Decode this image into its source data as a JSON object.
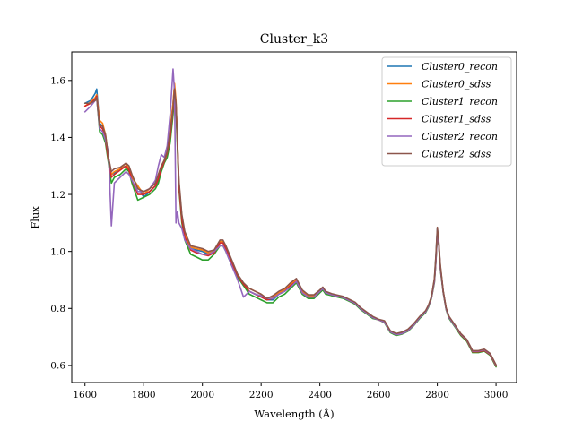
{
  "chart_data": {
    "type": "line",
    "title": "Cluster_k3",
    "xlabel": "Wavelength (Å)",
    "ylabel": "Flux",
    "xlim": [
      1555,
      3070
    ],
    "ylim": [
      0.54,
      1.7
    ],
    "x_ticks": [
      1600,
      1800,
      2000,
      2200,
      2400,
      2600,
      2800,
      3000
    ],
    "y_ticks": [
      0.6,
      0.8,
      1.0,
      1.2,
      1.4,
      1.6
    ],
    "grid": false,
    "legend_position": "top-right",
    "x": [
      1600,
      1620,
      1635,
      1640,
      1650,
      1660,
      1670,
      1680,
      1690,
      1700,
      1720,
      1740,
      1750,
      1760,
      1780,
      1800,
      1820,
      1840,
      1850,
      1860,
      1870,
      1880,
      1890,
      1900,
      1905,
      1910,
      1915,
      1920,
      1930,
      1940,
      1960,
      1980,
      2000,
      2020,
      2040,
      2060,
      2070,
      2080,
      2100,
      2120,
      2140,
      2160,
      2180,
      2200,
      2220,
      2240,
      2260,
      2280,
      2300,
      2320,
      2330,
      2340,
      2360,
      2380,
      2400,
      2410,
      2420,
      2440,
      2460,
      2480,
      2500,
      2520,
      2540,
      2560,
      2580,
      2600,
      2620,
      2640,
      2660,
      2680,
      2700,
      2720,
      2740,
      2760,
      2770,
      2780,
      2790,
      2795,
      2800,
      2805,
      2810,
      2820,
      2830,
      2840,
      2860,
      2880,
      2900,
      2920,
      2940,
      2960,
      2980,
      3000
    ],
    "series": [
      {
        "name": "Cluster0_recon",
        "color": "#1f77b4",
        "values": [
          1.52,
          1.53,
          1.555,
          1.57,
          1.45,
          1.44,
          1.4,
          1.33,
          1.27,
          1.275,
          1.29,
          1.3,
          1.29,
          1.26,
          1.23,
          1.19,
          1.21,
          1.23,
          1.25,
          1.29,
          1.32,
          1.35,
          1.42,
          1.52,
          1.58,
          1.52,
          1.38,
          1.24,
          1.12,
          1.06,
          1.01,
          1.005,
          1.0,
          0.99,
          1.0,
          1.03,
          1.03,
          1.01,
          0.96,
          0.91,
          0.88,
          0.86,
          0.85,
          0.84,
          0.83,
          0.83,
          0.85,
          0.86,
          0.88,
          0.9,
          0.88,
          0.86,
          0.84,
          0.84,
          0.86,
          0.87,
          0.855,
          0.845,
          0.845,
          0.84,
          0.83,
          0.82,
          0.8,
          0.785,
          0.77,
          0.76,
          0.755,
          0.72,
          0.71,
          0.715,
          0.725,
          0.745,
          0.77,
          0.79,
          0.81,
          0.84,
          0.9,
          0.98,
          1.08,
          1.03,
          0.95,
          0.86,
          0.8,
          0.77,
          0.74,
          0.71,
          0.69,
          0.65,
          0.65,
          0.65,
          0.64,
          0.6
        ]
      },
      {
        "name": "Cluster0_sdss",
        "color": "#ff7f0e",
        "values": [
          1.51,
          1.525,
          1.54,
          1.55,
          1.46,
          1.45,
          1.41,
          1.33,
          1.27,
          1.28,
          1.29,
          1.31,
          1.29,
          1.26,
          1.23,
          1.2,
          1.22,
          1.24,
          1.27,
          1.3,
          1.32,
          1.36,
          1.43,
          1.52,
          1.59,
          1.53,
          1.39,
          1.24,
          1.12,
          1.06,
          1.015,
          1.01,
          1.005,
          0.995,
          1.0,
          1.035,
          1.035,
          1.015,
          0.965,
          0.915,
          0.885,
          0.87,
          0.86,
          0.85,
          0.835,
          0.84,
          0.855,
          0.865,
          0.885,
          0.9,
          0.88,
          0.86,
          0.845,
          0.845,
          0.86,
          0.87,
          0.855,
          0.85,
          0.845,
          0.84,
          0.83,
          0.82,
          0.8,
          0.785,
          0.77,
          0.76,
          0.755,
          0.72,
          0.71,
          0.715,
          0.725,
          0.745,
          0.77,
          0.79,
          0.81,
          0.84,
          0.9,
          0.97,
          1.06,
          1.02,
          0.95,
          0.86,
          0.8,
          0.77,
          0.74,
          0.71,
          0.69,
          0.65,
          0.65,
          0.655,
          0.64,
          0.6
        ]
      },
      {
        "name": "Cluster1_recon",
        "color": "#2ca02c",
        "values": [
          1.52,
          1.52,
          1.53,
          1.54,
          1.42,
          1.41,
          1.38,
          1.31,
          1.24,
          1.26,
          1.27,
          1.29,
          1.28,
          1.24,
          1.18,
          1.19,
          1.2,
          1.22,
          1.24,
          1.28,
          1.31,
          1.33,
          1.38,
          1.48,
          1.55,
          1.49,
          1.36,
          1.22,
          1.1,
          1.04,
          0.99,
          0.98,
          0.97,
          0.97,
          0.99,
          1.02,
          1.02,
          1.0,
          0.95,
          0.91,
          0.88,
          0.85,
          0.84,
          0.83,
          0.82,
          0.82,
          0.84,
          0.85,
          0.87,
          0.89,
          0.87,
          0.85,
          0.835,
          0.835,
          0.855,
          0.865,
          0.85,
          0.845,
          0.84,
          0.835,
          0.825,
          0.815,
          0.795,
          0.78,
          0.765,
          0.76,
          0.75,
          0.715,
          0.705,
          0.71,
          0.72,
          0.74,
          0.765,
          0.785,
          0.805,
          0.835,
          0.89,
          0.96,
          1.06,
          1.02,
          0.94,
          0.855,
          0.795,
          0.765,
          0.735,
          0.705,
          0.685,
          0.645,
          0.645,
          0.65,
          0.635,
          0.595
        ]
      },
      {
        "name": "Cluster1_sdss",
        "color": "#d62728",
        "values": [
          1.51,
          1.52,
          1.535,
          1.545,
          1.44,
          1.43,
          1.39,
          1.32,
          1.26,
          1.27,
          1.285,
          1.3,
          1.285,
          1.25,
          1.2,
          1.2,
          1.21,
          1.23,
          1.255,
          1.29,
          1.315,
          1.345,
          1.4,
          1.5,
          1.57,
          1.51,
          1.38,
          1.23,
          1.11,
          1.05,
          1.005,
          0.995,
          0.99,
          0.985,
          0.995,
          1.03,
          1.03,
          1.01,
          0.96,
          0.915,
          0.885,
          0.86,
          0.85,
          0.84,
          0.83,
          0.835,
          0.85,
          0.86,
          0.88,
          0.895,
          0.875,
          0.855,
          0.84,
          0.84,
          0.86,
          0.87,
          0.855,
          0.848,
          0.843,
          0.838,
          0.828,
          0.818,
          0.798,
          0.783,
          0.768,
          0.76,
          0.752,
          0.718,
          0.708,
          0.712,
          0.722,
          0.742,
          0.768,
          0.788,
          0.808,
          0.838,
          0.895,
          0.965,
          1.07,
          1.025,
          0.945,
          0.858,
          0.798,
          0.768,
          0.738,
          0.708,
          0.688,
          0.648,
          0.648,
          0.652,
          0.638,
          0.598
        ]
      },
      {
        "name": "Cluster2_recon",
        "color": "#9467bd",
        "values": [
          1.49,
          1.51,
          1.53,
          1.54,
          1.43,
          1.42,
          1.39,
          1.35,
          1.09,
          1.24,
          1.26,
          1.28,
          1.27,
          1.25,
          1.21,
          1.21,
          1.22,
          1.25,
          1.3,
          1.34,
          1.33,
          1.37,
          1.48,
          1.64,
          1.56,
          1.1,
          1.14,
          1.1,
          1.08,
          1.04,
          1.01,
          1.0,
          0.99,
          0.99,
          1.0,
          1.02,
          1.02,
          1.0,
          0.95,
          0.9,
          0.84,
          0.86,
          0.85,
          0.845,
          0.835,
          0.835,
          0.85,
          0.86,
          0.875,
          0.895,
          0.875,
          0.855,
          0.84,
          0.84,
          0.86,
          0.87,
          0.855,
          0.848,
          0.843,
          0.838,
          0.828,
          0.818,
          0.798,
          0.783,
          0.768,
          0.76,
          0.752,
          0.718,
          0.708,
          0.712,
          0.722,
          0.742,
          0.768,
          0.788,
          0.808,
          0.838,
          0.895,
          0.965,
          1.07,
          1.025,
          0.945,
          0.858,
          0.798,
          0.768,
          0.738,
          0.71,
          0.69,
          0.65,
          0.65,
          0.655,
          0.64,
          0.6
        ]
      },
      {
        "name": "Cluster2_sdss",
        "color": "#8c564b",
        "values": [
          1.52,
          1.52,
          1.53,
          1.54,
          1.44,
          1.44,
          1.41,
          1.33,
          1.28,
          1.29,
          1.295,
          1.31,
          1.3,
          1.27,
          1.22,
          1.21,
          1.22,
          1.24,
          1.27,
          1.3,
          1.32,
          1.35,
          1.42,
          1.5,
          1.57,
          1.52,
          1.39,
          1.25,
          1.13,
          1.07,
          1.02,
          1.015,
          1.01,
          1.0,
          1.005,
          1.04,
          1.04,
          1.02,
          0.97,
          0.92,
          0.89,
          0.87,
          0.86,
          0.85,
          0.835,
          0.845,
          0.86,
          0.87,
          0.89,
          0.905,
          0.885,
          0.865,
          0.848,
          0.848,
          0.865,
          0.875,
          0.86,
          0.852,
          0.847,
          0.842,
          0.832,
          0.822,
          0.802,
          0.787,
          0.772,
          0.762,
          0.757,
          0.722,
          0.712,
          0.717,
          0.727,
          0.747,
          0.772,
          0.792,
          0.812,
          0.842,
          0.905,
          0.985,
          1.085,
          1.035,
          0.955,
          0.862,
          0.802,
          0.772,
          0.742,
          0.712,
          0.692,
          0.652,
          0.652,
          0.657,
          0.642,
          0.602
        ]
      }
    ]
  }
}
